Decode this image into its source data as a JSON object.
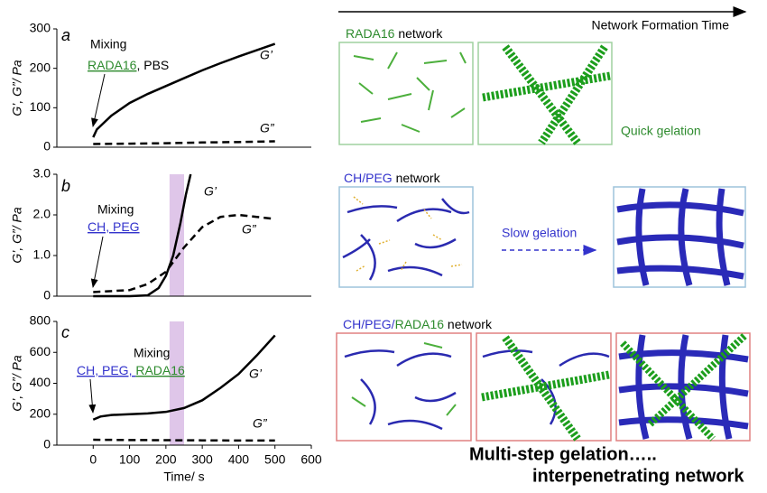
{
  "chart_data": [
    {
      "type": "line",
      "panel": "a",
      "ylabel": "G’, G”/ Pa",
      "xlim": [
        -100,
        600
      ],
      "ylim": [
        0,
        300
      ],
      "yticks": [
        0,
        100,
        200,
        300
      ],
      "annotation": "Mixing",
      "components": [
        {
          "text": "RADA16",
          "color": "#2e8b2e",
          "underline": true
        },
        {
          "text": ", PBS",
          "color": "#000000",
          "underline": false
        }
      ],
      "series": [
        {
          "name": "G’",
          "color": "#000000",
          "dash": false,
          "x": [
            0,
            10,
            50,
            100,
            150,
            200,
            250,
            300,
            350,
            400,
            450,
            500
          ],
          "values": [
            25,
            45,
            80,
            112,
            135,
            155,
            175,
            195,
            213,
            230,
            246,
            262
          ]
        },
        {
          "name": "G”",
          "color": "#000000",
          "dash": true,
          "x": [
            0,
            100,
            200,
            300,
            400,
            500
          ],
          "values": [
            8,
            9,
            10,
            12,
            13,
            15
          ]
        }
      ]
    },
    {
      "type": "line",
      "panel": "b",
      "ylabel": "G’, G”/ Pa",
      "xlim": [
        -100,
        600
      ],
      "ylim": [
        0,
        3
      ],
      "yticks": [
        0,
        {
          "value": 1,
          "label": "1.0"
        },
        {
          "value": 2,
          "label": "2.0"
        },
        {
          "value": 3,
          "label": "3.0"
        }
      ],
      "band": [
        210,
        250
      ],
      "band_color": "#d7b8e4",
      "annotation": "Mixing",
      "components": [
        {
          "text": "CH, PEG",
          "color": "#3333cc",
          "underline": true
        }
      ],
      "series": [
        {
          "name": "G’",
          "color": "#000000",
          "dash": false,
          "x": [
            0,
            100,
            150,
            180,
            200,
            220,
            240,
            255,
            268
          ],
          "values": [
            0,
            0,
            0.02,
            0.2,
            0.5,
            1.0,
            1.8,
            2.5,
            3.0
          ]
        },
        {
          "name": "G”",
          "color": "#000000",
          "dash": true,
          "x": [
            0,
            100,
            150,
            200,
            250,
            300,
            350,
            400,
            450,
            500
          ],
          "values": [
            0.1,
            0.15,
            0.3,
            0.6,
            1.2,
            1.7,
            1.95,
            2.0,
            1.95,
            1.9
          ]
        }
      ]
    },
    {
      "type": "line",
      "panel": "c",
      "ylabel": "G’, G”/ Pa",
      "xlabel": "Time/ s",
      "xlim": [
        -100,
        600
      ],
      "xticks": [
        0,
        100,
        200,
        300,
        400,
        500,
        600
      ],
      "ylim": [
        0,
        800
      ],
      "yticks": [
        0,
        200,
        400,
        600,
        800
      ],
      "band": [
        210,
        250
      ],
      "band_color": "#d7b8e4",
      "annotation": "Mixing",
      "components": [
        {
          "text": "CH, PEG, ",
          "color": "#3333cc",
          "underline": true
        },
        {
          "text": "RADA16",
          "color": "#2e8b2e",
          "underline": true
        }
      ],
      "series": [
        {
          "name": "G’",
          "color": "#000000",
          "dash": false,
          "x": [
            0,
            20,
            50,
            100,
            150,
            200,
            250,
            300,
            350,
            400,
            450,
            500
          ],
          "values": [
            165,
            185,
            195,
            200,
            205,
            215,
            240,
            290,
            370,
            460,
            580,
            710
          ]
        },
        {
          "name": "G”",
          "color": "#000000",
          "dash": true,
          "x": [
            0,
            100,
            200,
            300,
            400,
            500
          ],
          "values": [
            35,
            33,
            32,
            31,
            30,
            30
          ]
        }
      ]
    }
  ],
  "diagram": {
    "time_axis": "Network Formation Time",
    "row1_title": [
      {
        "text": "RADA16",
        "color": "#2e8b2e",
        "underline": false
      },
      {
        "text": " network",
        "color": "#000000",
        "underline": false
      }
    ],
    "quick": "Quick gelation",
    "row2_title": [
      {
        "text": "CH/PEG",
        "color": "#3333cc",
        "underline": false
      },
      {
        "text": " network",
        "color": "#000000",
        "underline": false
      }
    ],
    "slow": "Slow gelation",
    "row3_title": [
      {
        "text": "CH/PEG/",
        "color": "#3333cc",
        "underline": false
      },
      {
        "text": "RADA16",
        "color": "#2e8b2e",
        "underline": false
      },
      {
        "text": " network",
        "color": "#000000",
        "underline": false
      }
    ],
    "conclusion1": "Multi-step gelation…..",
    "conclusion2": "interpenetrating network"
  }
}
